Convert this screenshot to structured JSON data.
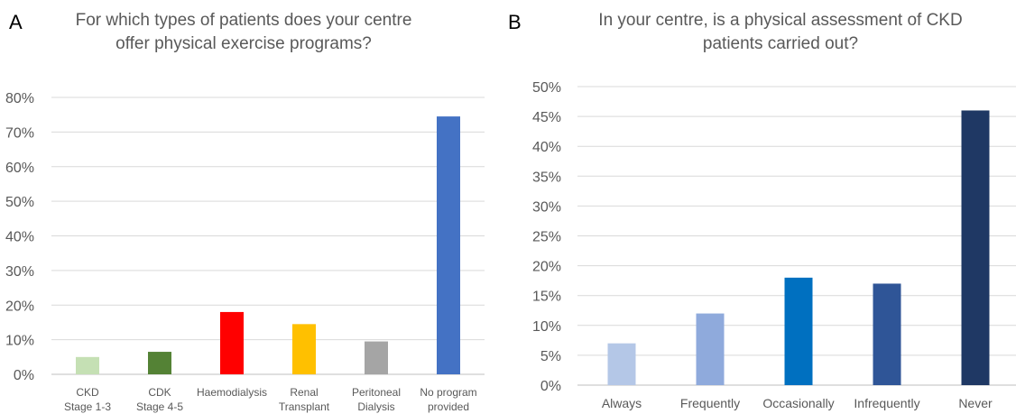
{
  "panels": [
    {
      "letter": "A",
      "title_line1": "For which types of patients does your centre",
      "title_line2": "offer physical exercise programs?"
    },
    {
      "letter": "B",
      "title_line1": "In your centre, is a physical assessment of CKD",
      "title_line2": "patients carried out?"
    }
  ],
  "chart_data": [
    {
      "type": "bar",
      "title": "For which types of patients does your centre offer physical exercise programs?",
      "categories": [
        [
          "CKD",
          "Stage 1-3"
        ],
        [
          "CDK",
          "Stage 4-5"
        ],
        [
          "Haemodialysis"
        ],
        [
          "Renal",
          "Transplant"
        ],
        [
          "Peritoneal",
          "Dialysis"
        ],
        [
          "No program",
          "provided"
        ]
      ],
      "values": [
        5,
        6.5,
        18,
        14.5,
        9.5,
        74.5
      ],
      "colors": [
        "#c5e0b4",
        "#548235",
        "#ff0000",
        "#ffc000",
        "#a5a5a5",
        "#4472c4"
      ],
      "yticks": [
        "0%",
        "10%",
        "20%",
        "30%",
        "40%",
        "50%",
        "60%",
        "70%",
        "80%"
      ],
      "ylim": [
        0,
        80
      ],
      "ystep": 10,
      "grid": true
    },
    {
      "type": "bar",
      "title": "In your centre, is a physical assessment of CKD patients carried out?",
      "categories": [
        [
          "Always"
        ],
        [
          "Frequently"
        ],
        [
          "Occasionally"
        ],
        [
          "Infrequently"
        ],
        [
          "Never"
        ]
      ],
      "values": [
        7,
        12,
        18,
        17,
        46
      ],
      "colors": [
        "#b4c7e7",
        "#8faadc",
        "#0070c0",
        "#2f5597",
        "#1f3864"
      ],
      "yticks": [
        "0%",
        "5%",
        "10%",
        "15%",
        "20%",
        "25%",
        "30%",
        "35%",
        "40%",
        "45%",
        "50%"
      ],
      "ylim": [
        0,
        50
      ],
      "ystep": 5,
      "grid": true
    }
  ]
}
